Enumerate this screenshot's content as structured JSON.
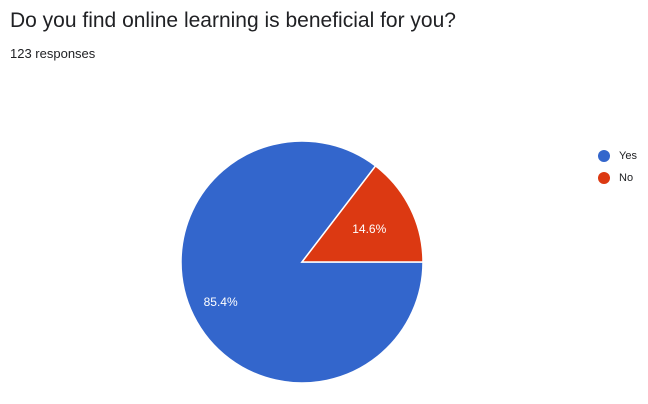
{
  "question": {
    "title": "Do you find online learning is beneficial for you?",
    "responses": "123 responses"
  },
  "chart_data": {
    "type": "pie",
    "categories": [
      "Yes",
      "No"
    ],
    "values": [
      85.4,
      14.6
    ],
    "data_labels": [
      "85.4%",
      "14.6%"
    ],
    "colors": [
      "#3366cc",
      "#dc3912"
    ],
    "legend_position": "right"
  },
  "legend": {
    "items": [
      {
        "label": "Yes",
        "color": "#3366cc"
      },
      {
        "label": "No",
        "color": "#dc3912"
      }
    ]
  }
}
